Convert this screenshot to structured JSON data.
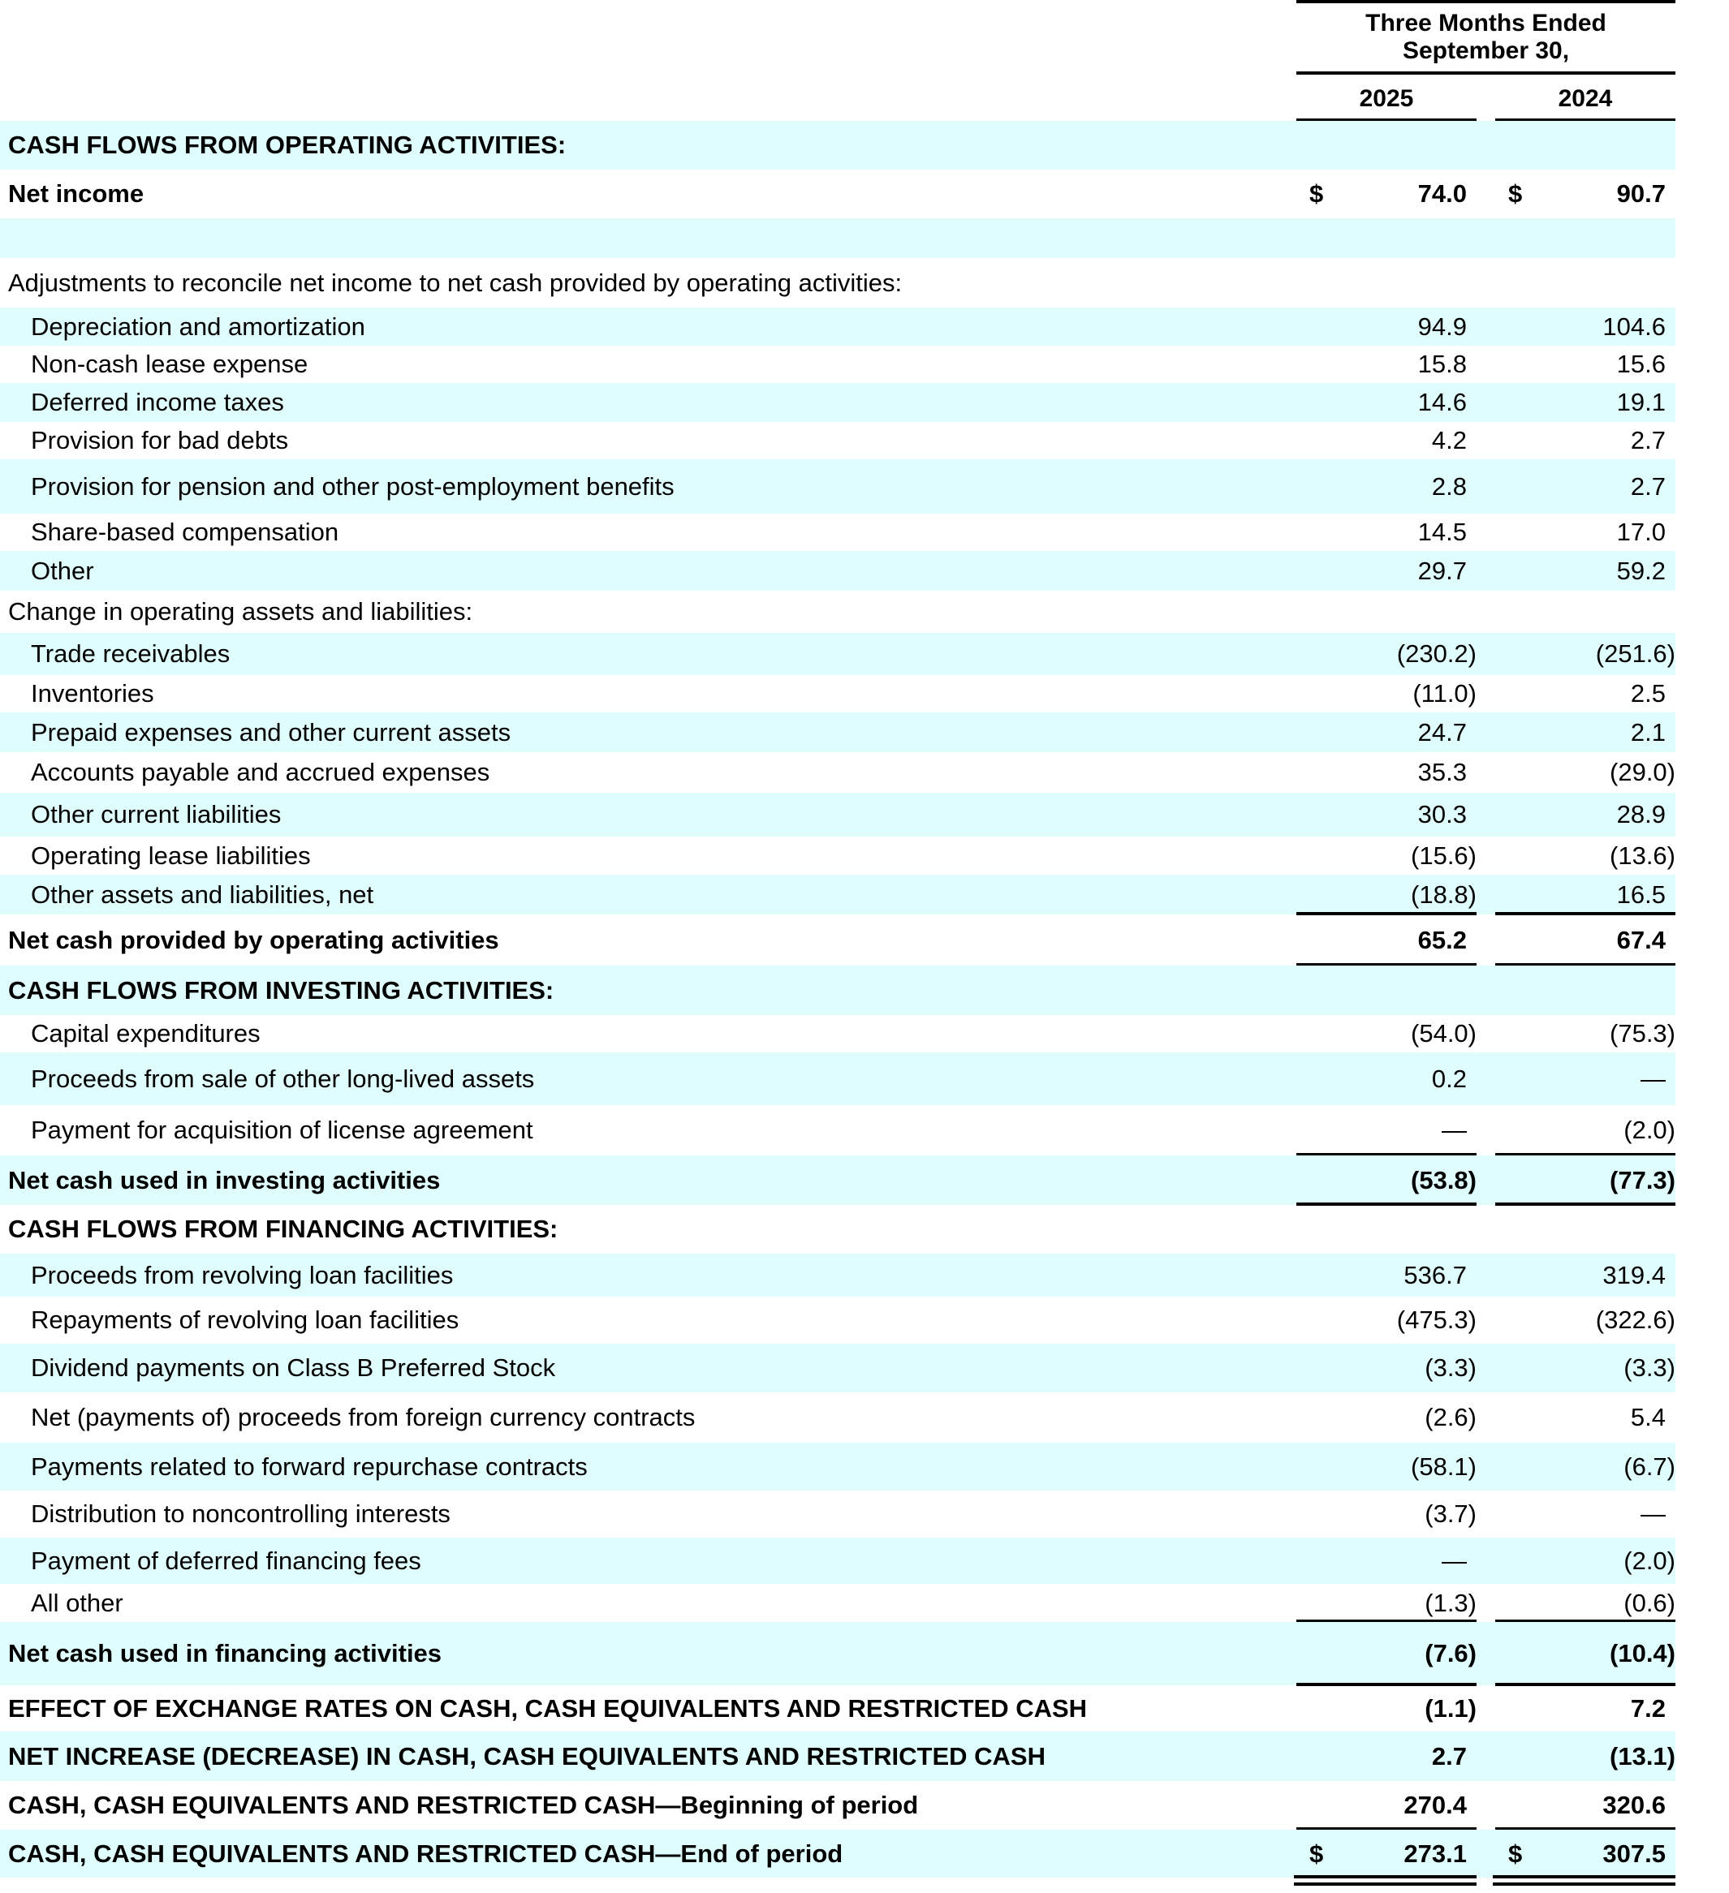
{
  "header": {
    "period_line1": "Three Months Ended",
    "period_line2": "September 30,",
    "col_2025": "2025",
    "col_2024": "2024"
  },
  "colors": {
    "row_shading": "#e0fdfd",
    "text": "#000000"
  },
  "rows": [
    {
      "label": "CASH FLOWS FROM OPERATING ACTIVITIES:",
      "bold": true,
      "indent": false,
      "v2025": "",
      "v2024": ""
    },
    {
      "label": "Net income",
      "bold": true,
      "indent": false,
      "dollar": "$",
      "v2025": "74.0",
      "v2024": "90.7"
    },
    {
      "label": "",
      "bold": false,
      "indent": false,
      "v2025": "",
      "v2024": ""
    },
    {
      "label": "Adjustments to reconcile net income to net cash provided by operating activities:",
      "bold": false,
      "indent": false,
      "v2025": "",
      "v2024": ""
    },
    {
      "label": "Depreciation and amortization",
      "bold": false,
      "indent": true,
      "v2025": "94.9",
      "v2024": "104.6"
    },
    {
      "label": "Non-cash lease expense",
      "bold": false,
      "indent": true,
      "v2025": "15.8",
      "v2024": "15.6"
    },
    {
      "label": "Deferred income taxes",
      "bold": false,
      "indent": true,
      "v2025": "14.6",
      "v2024": "19.1"
    },
    {
      "label": "Provision for bad debts",
      "bold": false,
      "indent": true,
      "v2025": "4.2",
      "v2024": "2.7"
    },
    {
      "label": "Provision for pension and other post-employment benefits",
      "bold": false,
      "indent": true,
      "v2025": "2.8",
      "v2024": "2.7"
    },
    {
      "label": "Share-based compensation",
      "bold": false,
      "indent": true,
      "v2025": "14.5",
      "v2024": "17.0"
    },
    {
      "label": "Other",
      "bold": false,
      "indent": true,
      "v2025": "29.7",
      "v2024": "59.2"
    },
    {
      "label": "Change in operating assets and liabilities:",
      "bold": false,
      "indent": false,
      "v2025": "",
      "v2024": ""
    },
    {
      "label": "Trade receivables",
      "bold": false,
      "indent": true,
      "v2025": "(230.2)",
      "v2024": "(251.6)"
    },
    {
      "label": "Inventories",
      "bold": false,
      "indent": true,
      "v2025": "(11.0)",
      "v2024": "2.5"
    },
    {
      "label": "Prepaid expenses and other current assets",
      "bold": false,
      "indent": true,
      "v2025": "24.7",
      "v2024": "2.1"
    },
    {
      "label": "Accounts payable and accrued expenses",
      "bold": false,
      "indent": true,
      "v2025": "35.3",
      "v2024": "(29.0)"
    },
    {
      "label": "Other current liabilities",
      "bold": false,
      "indent": true,
      "v2025": "30.3",
      "v2024": "28.9"
    },
    {
      "label": "Operating lease liabilities",
      "bold": false,
      "indent": true,
      "v2025": "(15.6)",
      "v2024": "(13.6)"
    },
    {
      "label": "Other assets and liabilities, net",
      "bold": false,
      "indent": true,
      "v2025": "(18.8)",
      "v2024": "16.5"
    },
    {
      "label": "Net cash provided by operating activities",
      "bold": true,
      "indent": false,
      "v2025": "65.2",
      "v2024": "67.4"
    },
    {
      "label": "CASH FLOWS FROM INVESTING ACTIVITIES:",
      "bold": true,
      "indent": false,
      "v2025": "",
      "v2024": ""
    },
    {
      "label": "Capital expenditures",
      "bold": false,
      "indent": true,
      "v2025": "(54.0)",
      "v2024": "(75.3)"
    },
    {
      "label": "Proceeds from sale of other long-lived assets",
      "bold": false,
      "indent": true,
      "v2025": "0.2",
      "v2024": "—"
    },
    {
      "label": "Payment for acquisition of license agreement",
      "bold": false,
      "indent": true,
      "v2025": "—",
      "v2024": "(2.0)"
    },
    {
      "label": "Net cash used in investing activities",
      "bold": true,
      "indent": false,
      "v2025": "(53.8)",
      "v2024": "(77.3)"
    },
    {
      "label": "CASH FLOWS FROM FINANCING ACTIVITIES:",
      "bold": true,
      "indent": false,
      "v2025": "",
      "v2024": ""
    },
    {
      "label": "Proceeds from revolving loan facilities",
      "bold": false,
      "indent": true,
      "v2025": "536.7",
      "v2024": "319.4"
    },
    {
      "label": "Repayments of revolving loan facilities",
      "bold": false,
      "indent": true,
      "v2025": "(475.3)",
      "v2024": "(322.6)"
    },
    {
      "label": "Dividend payments on Class B Preferred Stock",
      "bold": false,
      "indent": true,
      "v2025": "(3.3)",
      "v2024": "(3.3)"
    },
    {
      "label": "Net (payments of) proceeds from foreign currency contracts",
      "bold": false,
      "indent": true,
      "v2025": "(2.6)",
      "v2024": "5.4"
    },
    {
      "label": "Payments related to forward repurchase contracts",
      "bold": false,
      "indent": true,
      "v2025": "(58.1)",
      "v2024": "(6.7)"
    },
    {
      "label": "Distribution to noncontrolling interests",
      "bold": false,
      "indent": true,
      "v2025": "(3.7)",
      "v2024": "—"
    },
    {
      "label": "Payment of deferred financing fees",
      "bold": false,
      "indent": true,
      "v2025": "—",
      "v2024": "(2.0)"
    },
    {
      "label": "All other",
      "bold": false,
      "indent": true,
      "v2025": "(1.3)",
      "v2024": "(0.6)"
    },
    {
      "label": "Net cash used in financing activities",
      "bold": true,
      "indent": false,
      "v2025": "(7.6)",
      "v2024": "(10.4)"
    },
    {
      "label": "EFFECT OF EXCHANGE RATES ON CASH, CASH EQUIVALENTS AND RESTRICTED CASH",
      "bold": true,
      "indent": false,
      "v2025": "(1.1)",
      "v2024": "7.2"
    },
    {
      "label": "NET INCREASE (DECREASE) IN CASH, CASH EQUIVALENTS AND RESTRICTED CASH",
      "bold": true,
      "indent": false,
      "v2025": "2.7",
      "v2024": "(13.1)"
    },
    {
      "label": "CASH, CASH EQUIVALENTS AND RESTRICTED CASH—Beginning of period",
      "bold": true,
      "indent": false,
      "v2025": "270.4",
      "v2024": "320.6"
    },
    {
      "label": "CASH, CASH EQUIVALENTS AND RESTRICTED CASH—End of period",
      "bold": true,
      "indent": false,
      "dollar": "$",
      "v2025": "273.1",
      "v2024": "307.5"
    }
  ]
}
